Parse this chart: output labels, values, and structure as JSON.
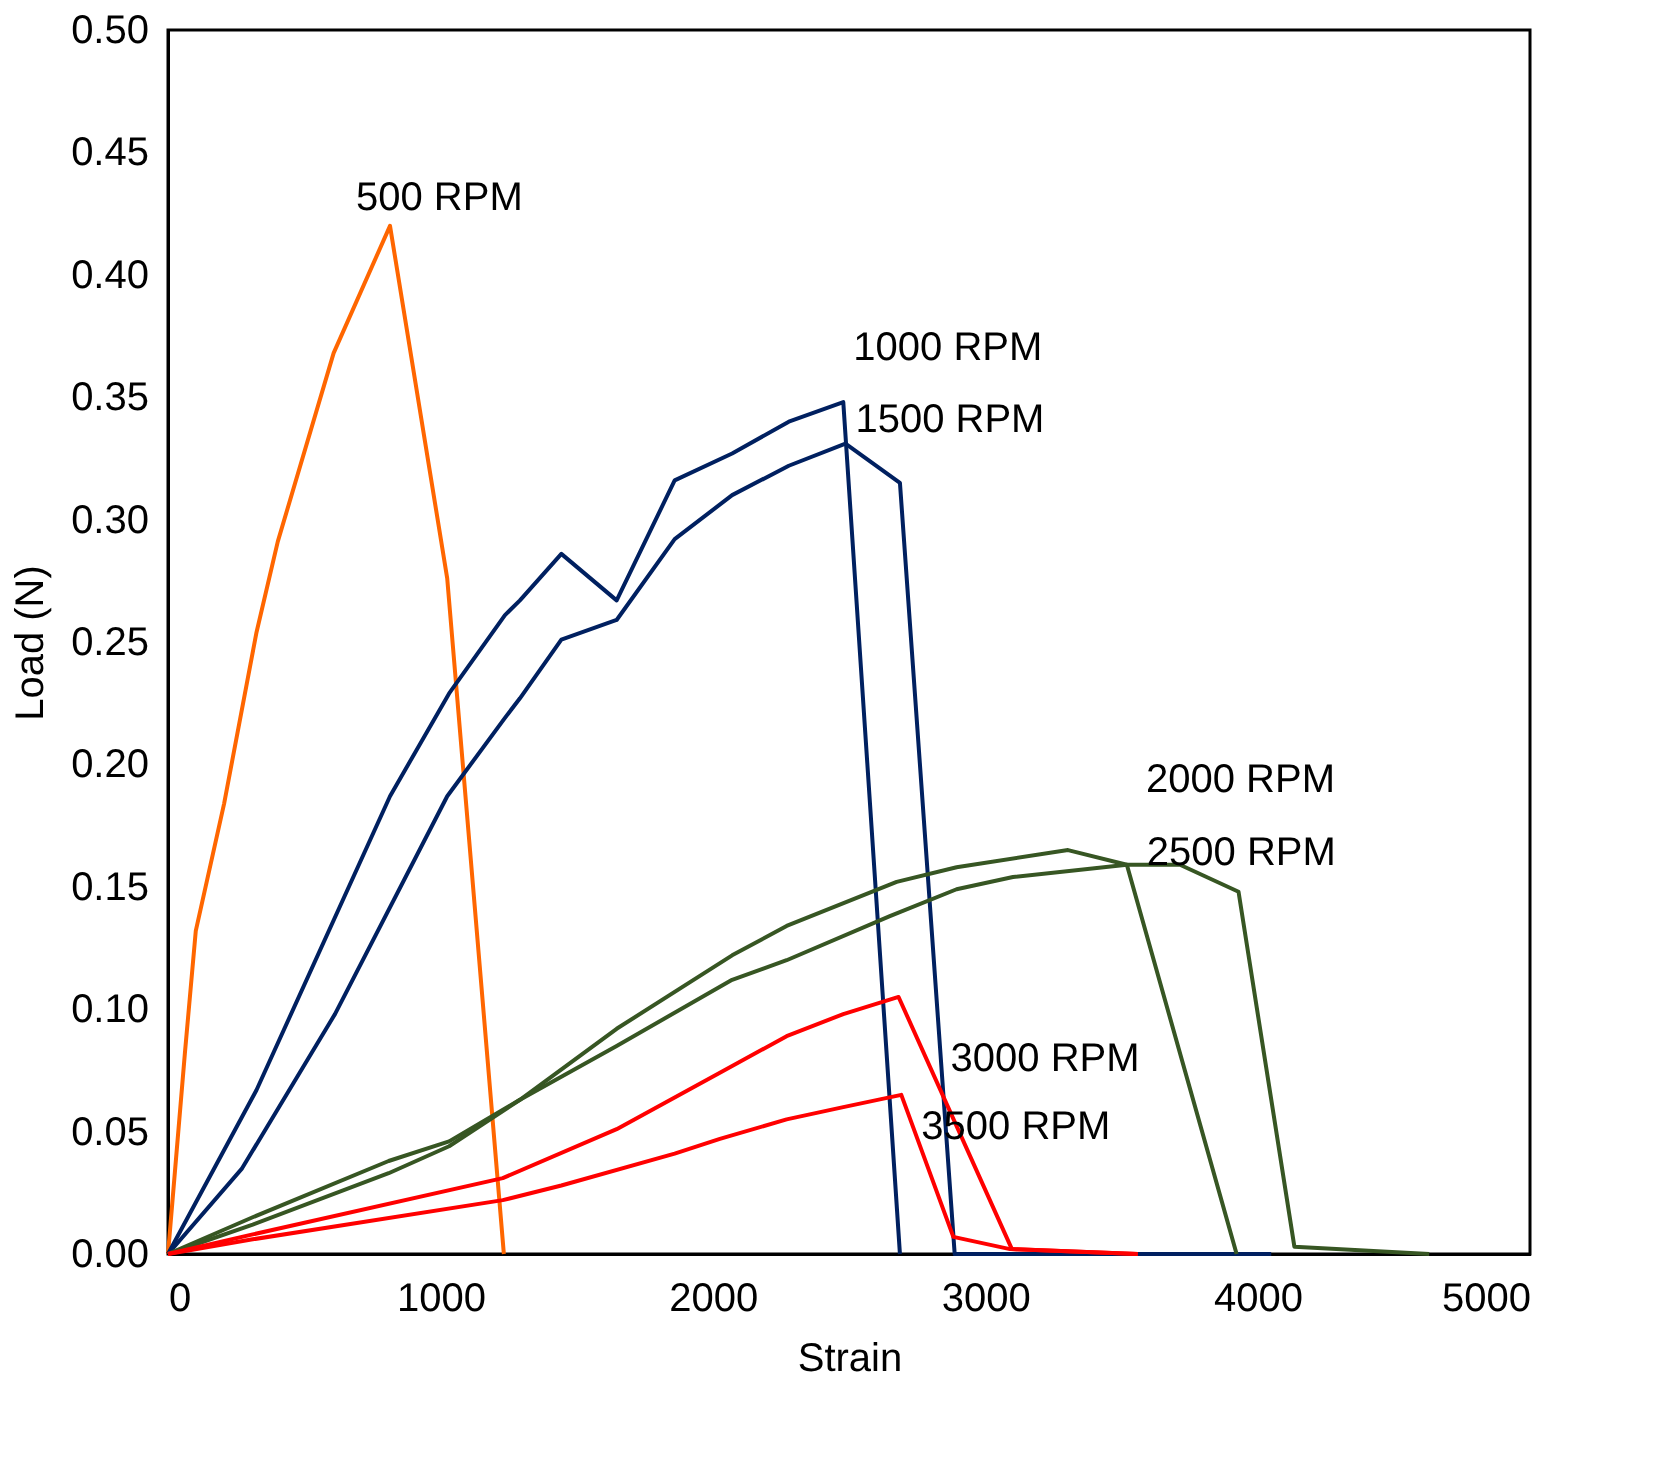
{
  "chart_data": {
    "type": "line",
    "xlabel": "Strain",
    "ylabel": "Load (N)",
    "xlim": [
      0,
      5000
    ],
    "xticks": [
      0,
      1000,
      2000,
      3000,
      4000,
      5000
    ],
    "ylim": [
      0,
      0.5
    ],
    "yticks": [
      {
        "value": 0,
        "label": "0.00"
      },
      0.05,
      {
        "value": 0.1,
        "label": "0.10"
      },
      0.15,
      {
        "value": 0.2,
        "label": "0.20"
      },
      0.25,
      {
        "value": 0.3,
        "label": "0.30"
      },
      0.35,
      {
        "value": 0.4,
        "label": "0.40"
      },
      0.45,
      {
        "value": 0.5,
        "label": "0.50"
      }
    ],
    "grid": false,
    "legend": false,
    "marker": "none",
    "line_style": "solid",
    "series": [
      {
        "name": "500 RPM",
        "color": "#ff6600",
        "x": [
          0,
          62,
          102,
          206,
          325,
          403,
          608,
          815,
          1025,
          1233
        ],
        "values": [
          0,
          0.082,
          0.132,
          0.184,
          0.254,
          0.291,
          0.368,
          0.42,
          0.276,
          0
        ]
      },
      {
        "name": "1000 RPM",
        "color": "#002060",
        "x": [
          0,
          325,
          815,
          1032,
          1237,
          1292,
          1444,
          1647,
          1860,
          2071,
          2279,
          2479,
          2687
        ],
        "values": [
          0,
          0.067,
          0.187,
          0.229,
          0.261,
          0.267,
          0.286,
          0.267,
          0.316,
          0.327,
          0.34,
          0.348,
          0
        ]
      },
      {
        "name": "1500 RPM",
        "color": "#002060",
        "x": [
          0,
          272,
          613,
          1025,
          1237,
          1292,
          1444,
          1647,
          1860,
          2071,
          2279,
          2487,
          2687,
          2888,
          4050
        ],
        "values": [
          0,
          0.035,
          0.098,
          0.187,
          0.219,
          0.227,
          0.251,
          0.259,
          0.292,
          0.31,
          0.322,
          0.331,
          0.315,
          0,
          0
        ]
      },
      {
        "name": "2000 RPM",
        "color": "#375623",
        "x": [
          0,
          311,
          810,
          1032,
          1292,
          1647,
          2071,
          2271,
          2675,
          2895,
          3304,
          3520,
          3923
        ],
        "values": [
          0,
          0.015,
          0.038,
          0.046,
          0.063,
          0.092,
          0.122,
          0.134,
          0.152,
          0.158,
          0.165,
          0.159,
          0
        ]
      },
      {
        "name": "2500 RPM",
        "color": "#375623",
        "x": [
          0,
          311,
          810,
          1032,
          1292,
          1647,
          2071,
          2271,
          2650,
          2895,
          3102,
          3520,
          3715,
          3930,
          4135,
          4630
        ],
        "values": [
          0,
          0.012,
          0.033,
          0.044,
          0.063,
          0.085,
          0.112,
          0.12,
          0.138,
          0.149,
          0.154,
          0.159,
          0.159,
          0.148,
          0.003,
          0
        ]
      },
      {
        "name": "3000 RPM",
        "color": "#ff0000",
        "x": [
          0,
          311,
          1229,
          1647,
          2026,
          2271,
          2479,
          2682,
          3098,
          3560
        ],
        "values": [
          0,
          0.008,
          0.031,
          0.051,
          0.074,
          0.089,
          0.098,
          0.105,
          0.002,
          0
        ]
      },
      {
        "name": "3500 RPM",
        "color": "#ff0000",
        "x": [
          0,
          311,
          1229,
          1444,
          1860,
          2026,
          2271,
          2479,
          2692,
          2883,
          3091,
          3560
        ],
        "values": [
          0,
          0.006,
          0.022,
          0.028,
          0.041,
          0.047,
          0.055,
          0.06,
          0.065,
          0.007,
          0.002,
          0
        ]
      }
    ]
  }
}
